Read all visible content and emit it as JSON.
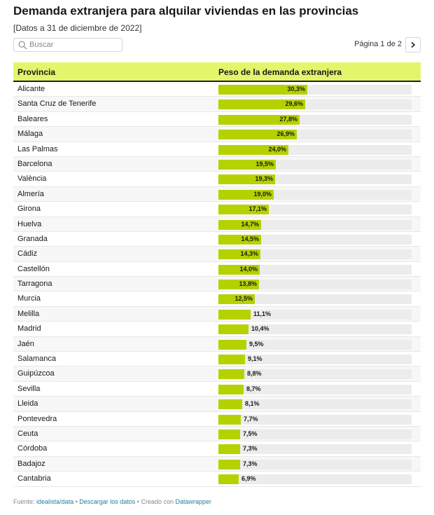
{
  "header": {
    "title": "Demanda extranjera para alquilar viviendas en las provincias",
    "subtitle": "[Datos a 31 de diciembre de 2022]"
  },
  "search": {
    "placeholder": "Buscar",
    "icon": "search-icon"
  },
  "pagination": {
    "label": "Página 1 de 2",
    "next_icon": "chevron-right-icon"
  },
  "colors": {
    "header_bg": "#e3f56b",
    "bar": "#b5d200",
    "track": "#ececec"
  },
  "chart_data": {
    "type": "table",
    "columns": [
      "Provincia",
      "Peso de la demanda extranjera"
    ],
    "scale_max": 66,
    "rows": [
      {
        "name": "Alicante",
        "value": 30.3,
        "label": "30,3%"
      },
      {
        "name": "Santa Cruz de Tenerife",
        "value": 29.6,
        "label": "29,6%"
      },
      {
        "name": "Baleares",
        "value": 27.8,
        "label": "27,8%"
      },
      {
        "name": "Málaga",
        "value": 26.9,
        "label": "26,9%"
      },
      {
        "name": "Las Palmas",
        "value": 24.0,
        "label": "24,0%"
      },
      {
        "name": "Barcelona",
        "value": 19.5,
        "label": "19,5%"
      },
      {
        "name": "València",
        "value": 19.3,
        "label": "19,3%"
      },
      {
        "name": "Almería",
        "value": 19.0,
        "label": "19,0%"
      },
      {
        "name": "Girona",
        "value": 17.1,
        "label": "17,1%"
      },
      {
        "name": "Huelva",
        "value": 14.7,
        "label": "14,7%"
      },
      {
        "name": "Granada",
        "value": 14.5,
        "label": "14,5%"
      },
      {
        "name": "Cádiz",
        "value": 14.3,
        "label": "14,3%"
      },
      {
        "name": "Castellón",
        "value": 14.0,
        "label": "14,0%"
      },
      {
        "name": "Tarragona",
        "value": 13.8,
        "label": "13,8%"
      },
      {
        "name": "Murcia",
        "value": 12.5,
        "label": "12,5%"
      },
      {
        "name": "Melilla",
        "value": 11.1,
        "label": "11,1%"
      },
      {
        "name": "Madrid",
        "value": 10.4,
        "label": "10,4%"
      },
      {
        "name": "Jaén",
        "value": 9.5,
        "label": "9,5%"
      },
      {
        "name": "Salamanca",
        "value": 9.1,
        "label": "9,1%"
      },
      {
        "name": "Guipúzcoa",
        "value": 8.8,
        "label": "8,8%"
      },
      {
        "name": "Sevilla",
        "value": 8.7,
        "label": "8,7%"
      },
      {
        "name": "Lleida",
        "value": 8.1,
        "label": "8,1%"
      },
      {
        "name": "Pontevedra",
        "value": 7.7,
        "label": "7,7%"
      },
      {
        "name": "Ceuta",
        "value": 7.5,
        "label": "7,5%"
      },
      {
        "name": "Córdoba",
        "value": 7.3,
        "label": "7,3%"
      },
      {
        "name": "Badajoz",
        "value": 7.3,
        "label": "7,3%"
      },
      {
        "name": "Cantabria",
        "value": 6.9,
        "label": "6,9%"
      }
    ]
  },
  "footer": {
    "prefix": "Fuente: ",
    "source_link": "idealista/data",
    "sep1": " • ",
    "download_link": "Descargar los datos",
    "sep2": " • Creado con ",
    "tool_link": "Datawrapper"
  }
}
